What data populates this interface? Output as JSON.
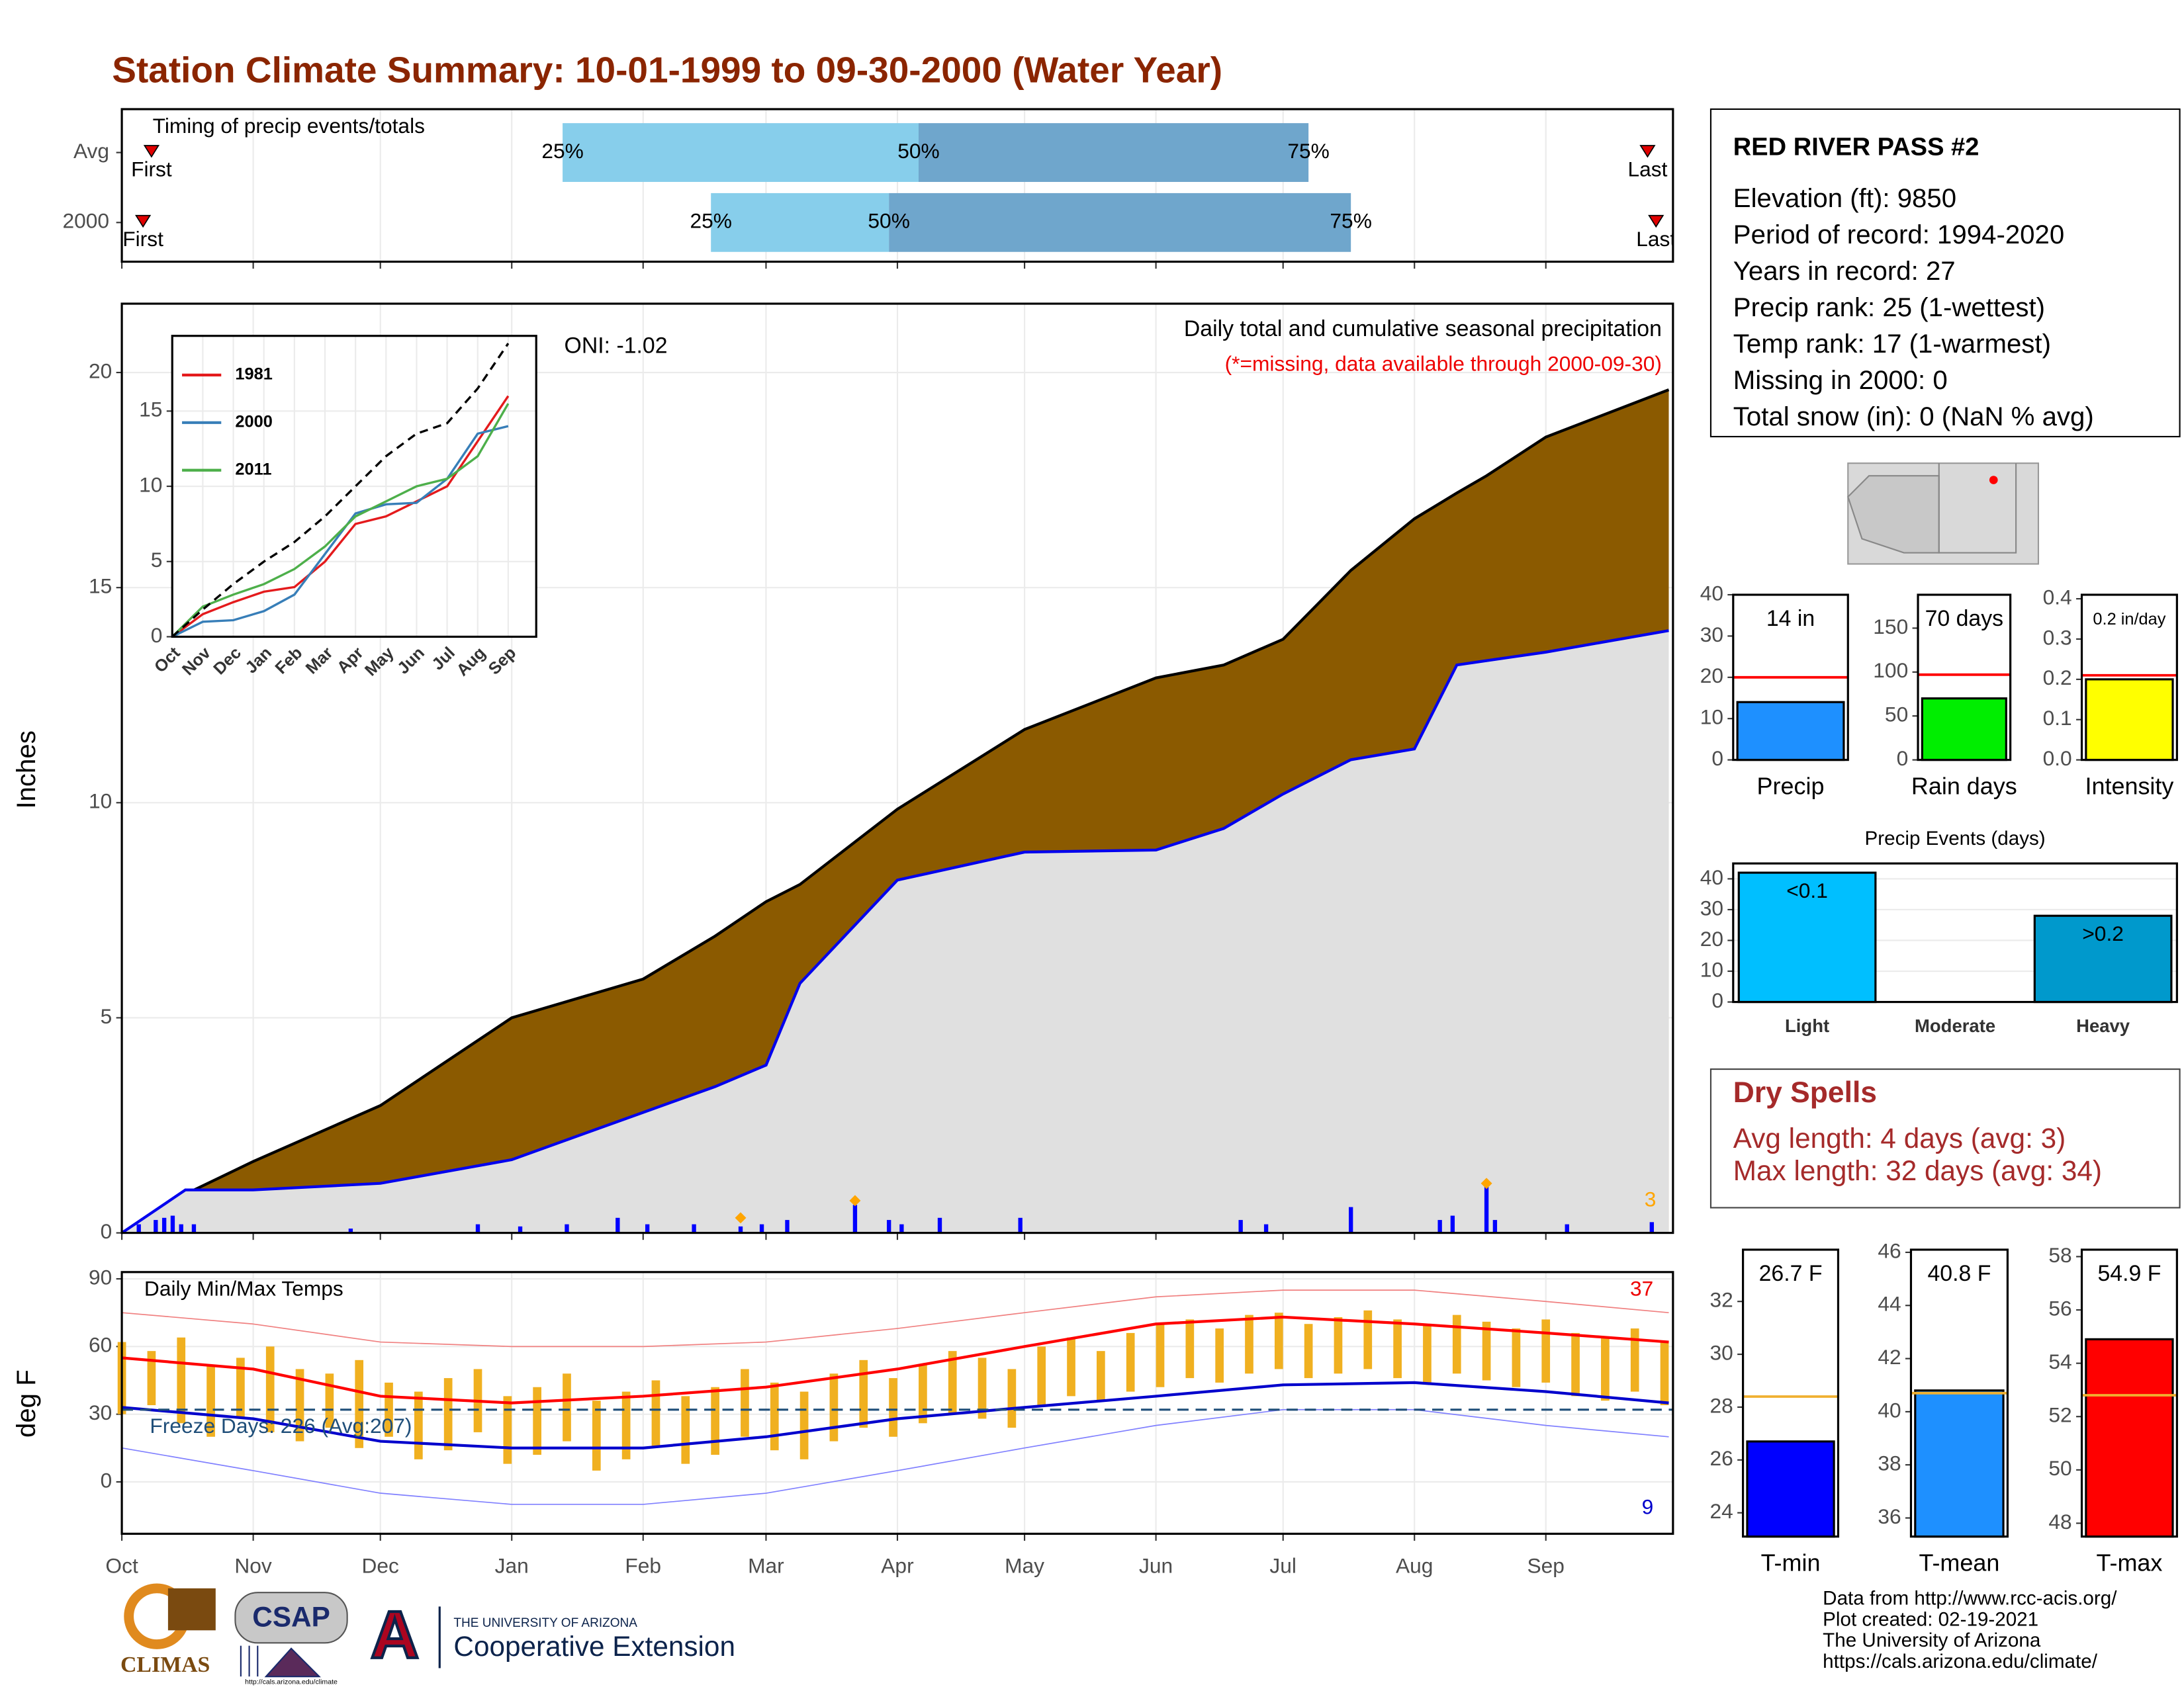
{
  "title": "Station Climate Summary: 10-01-1999 to 09-30-2000 (Water Year)",
  "chart_data": [
    {
      "type": "timeline",
      "label": "Timing of precip events/totals",
      "xlim": [
        0,
        366
      ],
      "xticks": [
        0,
        31,
        61,
        92,
        123,
        152,
        183,
        213,
        244,
        274,
        305,
        336
      ],
      "quartile_labels": [
        "25%",
        "50%",
        "75%"
      ],
      "first_label": "First",
      "last_label": "Last",
      "rows": [
        {
          "name": "Avg",
          "first": 7,
          "last": 360,
          "quartiles": [
            104,
            188,
            280
          ]
        },
        {
          "name": "2000",
          "first": 5,
          "last": 362,
          "quartiles": [
            139,
            181,
            290
          ]
        }
      ],
      "colors": [
        "#87ceeb",
        "#6fa6cc"
      ],
      "marker_color": "#e00000",
      "grid": true
    },
    {
      "type": "area",
      "ylabel": "Inches",
      "xlim": [
        0,
        366
      ],
      "ylim": [
        0,
        21.6
      ],
      "yticks": [
        0,
        5,
        10,
        15,
        20
      ],
      "xticks": [
        0,
        31,
        61,
        92,
        123,
        152,
        183,
        213,
        244,
        274,
        305,
        336
      ],
      "grid": true,
      "subtitle": "Daily total and cumulative seasonal precipitation",
      "note": "(*=missing, data available through 2000-09-30)",
      "oni": "ONI: -1.02",
      "max_label": "3",
      "x": [
        0,
        15,
        31,
        61,
        92,
        123,
        140,
        152,
        160,
        183,
        213,
        244,
        260,
        274,
        290,
        305,
        315,
        322,
        336,
        365
      ],
      "series": [
        {
          "color": "#000000",
          "fill": "#8b5a00",
          "values": [
            0,
            0.9,
            1.66,
            2.96,
            5.0,
            5.9,
            6.9,
            7.7,
            8.1,
            9.85,
            11.7,
            12.9,
            13.2,
            13.8,
            15.4,
            16.6,
            17.2,
            17.6,
            18.5,
            19.6
          ]
        },
        {
          "color": "#0000ee",
          "fill": "#e0e0e0",
          "values": [
            0,
            1.0,
            1.0,
            1.15,
            1.7,
            2.8,
            3.4,
            3.9,
            5.8,
            8.2,
            8.85,
            8.9,
            9.4,
            10.2,
            11.0,
            11.25,
            13.2,
            13.3,
            13.5,
            14.0
          ]
        }
      ],
      "bars": {
        "color": "#0000ff",
        "x": [
          4,
          8,
          10,
          12,
          14,
          17,
          54,
          84,
          94,
          105,
          117,
          124,
          135,
          146,
          151,
          157,
          173,
          181,
          184,
          193,
          212,
          264,
          270,
          290,
          311,
          314,
          322,
          324,
          341,
          361
        ],
        "values": [
          0.2,
          0.3,
          0.35,
          0.4,
          0.2,
          0.2,
          0.1,
          0.2,
          0.15,
          0.2,
          0.35,
          0.2,
          0.2,
          0.15,
          0.2,
          0.3,
          0.65,
          0.3,
          0.2,
          0.35,
          0.35,
          0.3,
          0.2,
          0.6,
          0.3,
          0.4,
          1.1,
          0.3,
          0.2,
          0.25
        ]
      },
      "markers": {
        "color": "#ffa500",
        "x": [
          146,
          173,
          322
        ],
        "values": [
          0.35,
          0.75,
          1.15
        ]
      }
    },
    {
      "type": "line",
      "categories": [
        "Oct",
        "Nov",
        "Dec",
        "Jan",
        "Feb",
        "Mar",
        "Apr",
        "May",
        "Jun",
        "Jul",
        "Aug",
        "Sep"
      ],
      "ylim": [
        0,
        20
      ],
      "yticks": [
        0,
        5,
        10,
        15
      ],
      "grid": true,
      "series": [
        {
          "name": "1981",
          "color": "#e41a1c",
          "values": [
            0,
            1.5,
            2.3,
            3,
            3.3,
            5,
            7.5,
            8,
            9,
            10,
            13,
            16
          ]
        },
        {
          "name": "2000",
          "color": "#377eb8",
          "values": [
            0,
            1,
            1.1,
            1.7,
            2.8,
            5.5,
            8.2,
            8.8,
            8.9,
            10.5,
            13.5,
            14
          ]
        },
        {
          "name": "2011",
          "color": "#4daf4a",
          "values": [
            0,
            2,
            2.8,
            3.5,
            4.5,
            6,
            8,
            9,
            10,
            10.5,
            12,
            15.5
          ]
        },
        {
          "color": "#000000",
          "dash": true,
          "values": [
            0,
            1.8,
            3.5,
            5,
            6.3,
            8,
            10,
            12,
            13.5,
            14.2,
            16.5,
            19.5
          ]
        }
      ]
    },
    {
      "type": "range",
      "ylabel": "deg F",
      "label": "Daily Min/Max Temps",
      "freeze": "Freeze Days: 226 (Avg:207)",
      "max_count": "37",
      "min_count": "9",
      "xlim": [
        0,
        366
      ],
      "ylim": [
        -23,
        93
      ],
      "yticks": [
        0,
        30,
        60,
        90
      ],
      "grid": true,
      "hline": 32,
      "xticks": [
        {
          "value": 0,
          "label": "Oct"
        },
        {
          "value": 31,
          "label": "Nov"
        },
        {
          "value": 61,
          "label": "Dec"
        },
        {
          "value": 92,
          "label": "Jan"
        },
        {
          "value": 123,
          "label": "Feb"
        },
        {
          "value": 152,
          "label": "Mar"
        },
        {
          "value": 183,
          "label": "Apr"
        },
        {
          "value": 213,
          "label": "May"
        },
        {
          "value": 244,
          "label": "Jun"
        },
        {
          "value": 274,
          "label": "Jul"
        },
        {
          "value": 305,
          "label": "Aug"
        },
        {
          "value": 336,
          "label": "Sep"
        }
      ],
      "x": [
        0,
        31,
        61,
        92,
        123,
        152,
        183,
        213,
        244,
        274,
        305,
        336,
        365
      ],
      "series": [
        {
          "color": "#f08080",
          "width": 0.8,
          "values": [
            75,
            70,
            62,
            60,
            60,
            62,
            68,
            75,
            82,
            85,
            85,
            80,
            75
          ]
        },
        {
          "color": "#8080ff",
          "width": 0.8,
          "values": [
            15,
            5,
            -5,
            -10,
            -10,
            -5,
            5,
            15,
            25,
            32,
            32,
            25,
            20
          ]
        },
        {
          "color": "#ff0000",
          "width": 2,
          "values": [
            55,
            50,
            38,
            35,
            38,
            42,
            50,
            60,
            70,
            73,
            70,
            66,
            62
          ]
        },
        {
          "color": "#0000cc",
          "width": 2,
          "values": [
            33,
            28,
            18,
            15,
            15,
            20,
            28,
            33,
            38,
            43,
            44,
            40,
            35
          ]
        }
      ],
      "ranges": {
        "color": "#f0b020",
        "x": [
          0,
          7,
          14,
          21,
          28,
          35,
          42,
          49,
          56,
          63,
          70,
          77,
          84,
          91,
          98,
          105,
          112,
          119,
          126,
          133,
          140,
          147,
          154,
          161,
          168,
          175,
          182,
          189,
          196,
          203,
          210,
          217,
          224,
          231,
          238,
          245,
          252,
          259,
          266,
          273,
          280,
          287,
          294,
          301,
          308,
          315,
          322,
          329,
          336,
          343,
          350,
          357,
          364
        ],
        "high": [
          62,
          58,
          64,
          52,
          55,
          60,
          50,
          48,
          54,
          44,
          40,
          46,
          50,
          38,
          42,
          48,
          36,
          40,
          45,
          38,
          42,
          50,
          44,
          40,
          48,
          54,
          46,
          52,
          58,
          55,
          50,
          60,
          64,
          58,
          66,
          70,
          72,
          68,
          74,
          75,
          70,
          73,
          76,
          72,
          70,
          74,
          71,
          68,
          72,
          66,
          64,
          68,
          62
        ],
        "low": [
          30,
          34,
          26,
          20,
          28,
          22,
          18,
          24,
          15,
          20,
          10,
          14,
          22,
          8,
          12,
          18,
          5,
          10,
          16,
          8,
          12,
          20,
          14,
          10,
          18,
          24,
          20,
          26,
          30,
          28,
          24,
          34,
          38,
          36,
          40,
          42,
          46,
          44,
          48,
          50,
          46,
          48,
          50,
          46,
          44,
          48,
          45,
          42,
          44,
          38,
          36,
          40,
          34
        ]
      }
    },
    {
      "type": "bar",
      "categories": [
        "Precip"
      ],
      "values": [
        14
      ],
      "value_labels": [
        "14 in"
      ],
      "colors": [
        "#1e90ff"
      ],
      "ref": 20,
      "ref_color": "#ff0000",
      "ylim": [
        0,
        40
      ],
      "yticks": [
        0,
        10,
        20,
        30,
        40
      ]
    },
    {
      "type": "bar",
      "categories": [
        "Rain days"
      ],
      "values": [
        70
      ],
      "value_labels": [
        "70 days"
      ],
      "colors": [
        "#00ee00"
      ],
      "ref": 97,
      "ref_color": "#ff0000",
      "ylim": [
        0,
        188
      ],
      "yticks": [
        0,
        50,
        100,
        150
      ]
    },
    {
      "type": "bar",
      "categories": [
        "Intensity"
      ],
      "values": [
        0.2
      ],
      "value_labels": [
        "0.2 in/day"
      ],
      "colors": [
        "#ffff00"
      ],
      "ref": 0.21,
      "ref_color": "#ff0000",
      "ylim": [
        0,
        0.41
      ],
      "yticks": [
        {
          "value": 0,
          "label": "0.0"
        },
        0.1,
        0.2,
        0.3,
        0.4
      ]
    },
    {
      "type": "bar",
      "title": "Precip Events (days)",
      "categories": [
        "Light",
        "Moderate",
        "Heavy"
      ],
      "values": [
        42,
        0,
        28
      ],
      "value_labels": [
        "<0.1",
        null,
        ">0.2"
      ],
      "colors": [
        "#00bfff",
        "#1a5276",
        "#0099cc"
      ],
      "ylim": [
        0,
        45
      ],
      "yticks": [
        0,
        10,
        20,
        30,
        40
      ],
      "grid": true
    },
    {
      "type": "bar",
      "categories": [
        "T-min"
      ],
      "values": [
        26.7
      ],
      "value_labels": [
        "26.7 F"
      ],
      "colors": [
        "#0000ff"
      ],
      "ref": 28.4,
      "ref_color": "#f0b030",
      "ylim": [
        23.1,
        33.96
      ],
      "yticks": [
        24,
        26,
        28,
        30,
        32
      ]
    },
    {
      "type": "bar",
      "categories": [
        "T-mean"
      ],
      "values": [
        40.8
      ],
      "value_labels": [
        "40.8 F"
      ],
      "colors": [
        "#1e90ff"
      ],
      "ref": 40.7,
      "ref_color": "#f0b030",
      "ylim": [
        35.3,
        46.1
      ],
      "yticks": [
        36,
        38,
        40,
        42,
        44,
        46
      ]
    },
    {
      "type": "bar",
      "categories": [
        "T-max"
      ],
      "values": [
        54.9
      ],
      "value_labels": [
        "54.9 F"
      ],
      "colors": [
        "#ff0000"
      ],
      "ref": 52.8,
      "ref_color": "#f0b030",
      "ylim": [
        47.5,
        58.26
      ],
      "yticks": [
        48,
        50,
        52,
        54,
        56,
        58
      ]
    }
  ],
  "station": {
    "name": "RED RIVER PASS #2",
    "lines": [
      "Elevation (ft): 9850",
      "Period of record: 1994-2020",
      "Years in record: 27",
      "Precip rank: 25 (1-wettest)",
      "Temp rank: 17 (1-warmest)",
      "Missing in 2000: 0",
      "Total snow (in): 0 (NaN % avg)"
    ]
  },
  "dry_spells": {
    "title": "Dry Spells",
    "lines": [
      "Avg length: 4 days (avg: 3)",
      "Max length: 32 days (avg: 34)"
    ]
  },
  "footer": [
    "Data from http://www.rcc-acis.org/",
    "Plot created: 02-19-2021",
    "The University of Arizona",
    "https://cals.arizona.edu/climate/"
  ],
  "logos": {
    "climas": "CLIMAS",
    "csap": "CSAP",
    "csap_url": "http://cals.arizona.edu/climate",
    "ua": "A",
    "ua_small": "THE UNIVERSITY OF ARIZONA",
    "ua_big": "Cooperative Extension"
  }
}
